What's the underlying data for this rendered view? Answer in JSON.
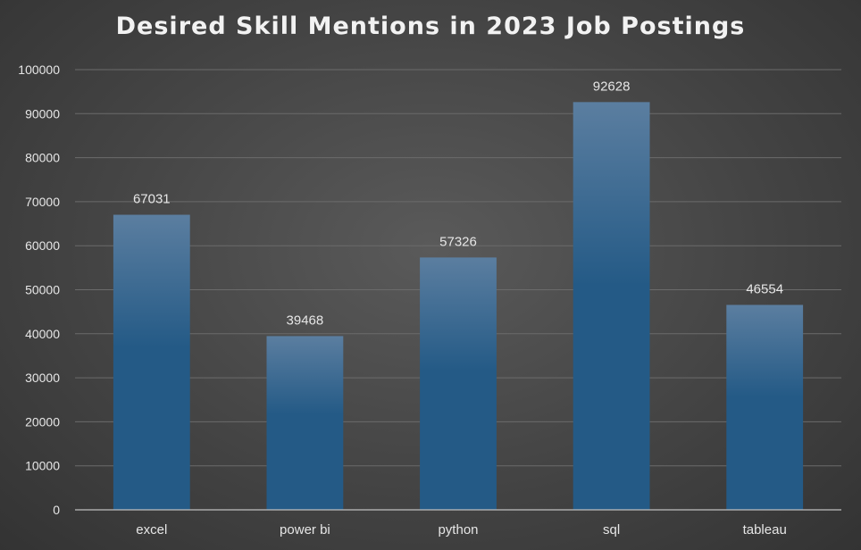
{
  "chart_data": {
    "type": "bar",
    "title": "Desired Skill Mentions in 2023 Job Postings",
    "xlabel": "",
    "ylabel": "",
    "categories": [
      "excel",
      "power bi",
      "python",
      "sql",
      "tableau"
    ],
    "values": [
      67031,
      39468,
      57326,
      92628,
      46554
    ],
    "data_labels": [
      "67031",
      "39468",
      "57326",
      "92628",
      "46554"
    ],
    "ylim": [
      0,
      100000
    ],
    "yticks": [
      0,
      10000,
      20000,
      30000,
      40000,
      50000,
      60000,
      70000,
      80000,
      90000,
      100000
    ],
    "ytick_labels": [
      "0",
      "10000",
      "20000",
      "30000",
      "40000",
      "50000",
      "60000",
      "70000",
      "80000",
      "90000",
      "100000"
    ],
    "grid": true,
    "legend": "none",
    "colors": {
      "bar_top": "#5b7ea0",
      "bar_bottom": "#245a86",
      "gridline": "#6b6b6b",
      "axis": "#bfbfbf",
      "text": "#e6e6e6"
    }
  }
}
